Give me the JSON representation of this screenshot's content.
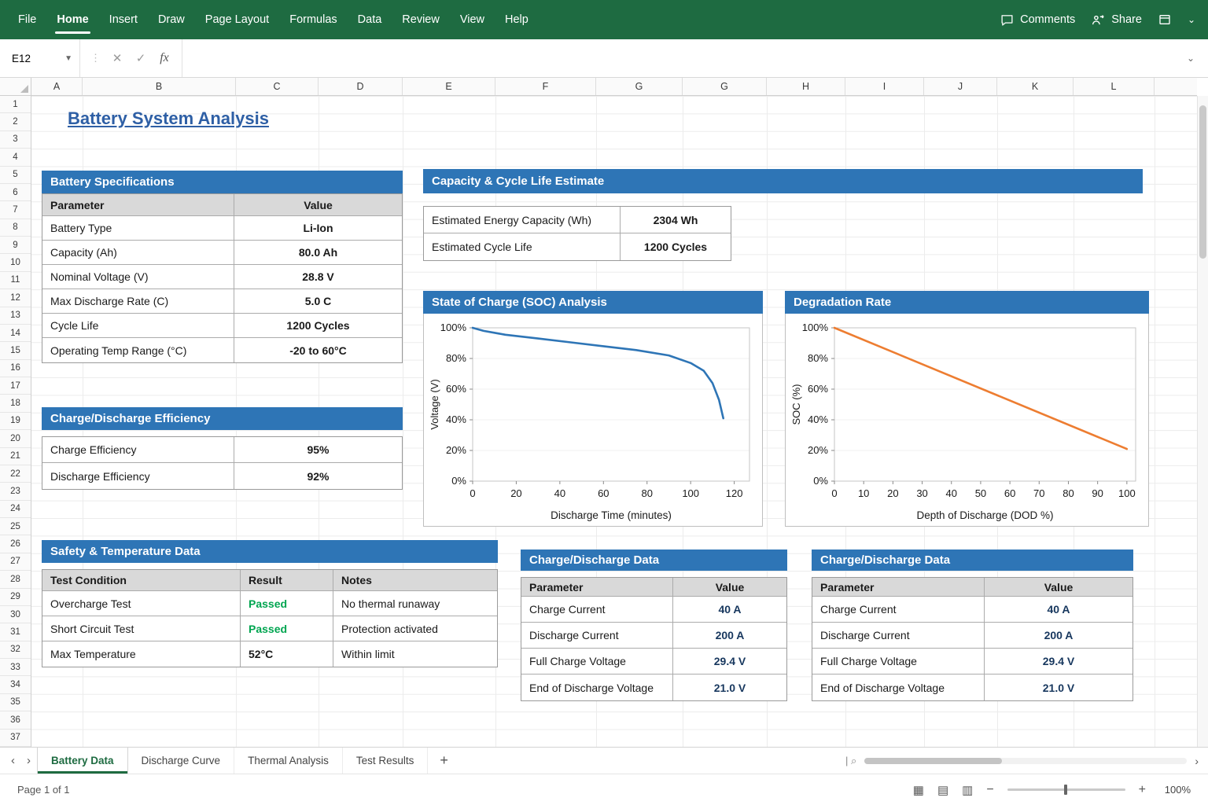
{
  "ribbon": {
    "menus": [
      "File",
      "Home",
      "Insert",
      "Draw",
      "Page Layout",
      "Formulas",
      "Data",
      "Review",
      "View",
      "Help"
    ],
    "active_menu": "Home",
    "comments_label": "Comments",
    "share_label": "Share"
  },
  "formula_bar": {
    "name_box": "E12",
    "fx_label": "fx",
    "formula_value": ""
  },
  "grid": {
    "columns": [
      "A",
      "B",
      "C",
      "D",
      "E",
      "F",
      "G",
      "G",
      "H",
      "I",
      "J",
      "K",
      "L"
    ],
    "row_count": 37
  },
  "page": {
    "title": "Battery System Analysis"
  },
  "colors": {
    "excel_green": "#1E6B41",
    "accent_blue": "#2E75B6",
    "passed_green": "#00A550",
    "soc_line_blue": "#2E75B6",
    "degradation_orange": "#ED7D31",
    "value_navy": "#17375E"
  },
  "tables": {
    "battery_specs": {
      "title": "Battery Specifications",
      "headers": [
        "Parameter",
        "Value"
      ],
      "rows": [
        [
          "Battery Type",
          "Li-Ion"
        ],
        [
          "Capacity (Ah)",
          "80.0 Ah"
        ],
        [
          "Nominal Voltage (V)",
          "28.8 V"
        ],
        [
          "Max Discharge Rate (C)",
          "5.0 C"
        ],
        [
          "Cycle Life",
          "1200 Cycles"
        ],
        [
          "Operating Temp Range (°C)",
          "-20 to 60°C"
        ]
      ]
    },
    "capacity": {
      "title": "Capacity & Cycle Life Estimate",
      "rows": [
        [
          "Estimated Energy Capacity (Wh)",
          "2304 Wh"
        ],
        [
          "Estimated Cycle Life",
          "1200 Cycles"
        ]
      ]
    },
    "efficiency": {
      "title": "Charge/Discharge Efficiency",
      "rows": [
        [
          "Charge Efficiency",
          "95%"
        ],
        [
          "Discharge Efficiency",
          "92%"
        ]
      ]
    },
    "safety": {
      "title": "Safety & Temperature Data",
      "headers": [
        "Test Condition",
        "Result",
        "Notes"
      ],
      "rows": [
        [
          "Overcharge Test",
          "Passed",
          "No thermal runaway"
        ],
        [
          "Short Circuit Test",
          "Passed",
          "Protection activated"
        ],
        [
          "Max Temperature",
          "52°C",
          "Within limit"
        ]
      ]
    },
    "charge_data_left": {
      "title": "Charge/Discharge Data",
      "headers": [
        "Parameter",
        "Value"
      ],
      "rows": [
        [
          "Charge Current",
          "40 A"
        ],
        [
          "Discharge Current",
          "200 A"
        ],
        [
          "Full Charge Voltage",
          "29.4 V"
        ],
        [
          "End of Discharge Voltage",
          "21.0 V"
        ]
      ]
    },
    "charge_data_right": {
      "title": "Charge/Discharge Data",
      "headers": [
        "Parameter",
        "Value"
      ],
      "rows": [
        [
          "Charge Current",
          "40 A"
        ],
        [
          "Discharge Current",
          "200 A"
        ],
        [
          "Full Charge Voltage",
          "29.4 V"
        ],
        [
          "End of Discharge Voltage",
          "21.0 V"
        ]
      ]
    }
  },
  "chart_data": [
    {
      "type": "line",
      "title": "State of Charge (SOC) Analysis",
      "xlabel": "Discharge Time (minutes)",
      "ylabel": "Voltage (V)",
      "x": [
        0,
        5,
        15,
        30,
        45,
        60,
        75,
        90,
        100,
        106,
        110,
        113,
        115
      ],
      "y": [
        100,
        98,
        95.5,
        93,
        90.5,
        88,
        85.5,
        82,
        77,
        72,
        64,
        53,
        41
      ],
      "xticks": [
        0,
        20,
        40,
        60,
        80,
        100,
        120
      ],
      "xlim": [
        0,
        127
      ],
      "ylim": [
        0,
        100
      ],
      "ytick_step": 20,
      "ytick_suffix": "%",
      "grid": "horizontal-faint",
      "legend": "none",
      "line_color": "#2E75B6"
    },
    {
      "type": "line",
      "title": "Degradation Rate",
      "xlabel": "Depth of Discharge (DOD %)",
      "ylabel": "SOC (%)",
      "x": [
        0,
        100
      ],
      "y": [
        100,
        21
      ],
      "xticks": [
        0,
        10,
        20,
        30,
        40,
        50,
        60,
        70,
        80,
        90,
        100
      ],
      "xlim": [
        0,
        103
      ],
      "ylim": [
        0,
        100
      ],
      "ytick_step": 20,
      "ytick_suffix": "%",
      "grid": "horizontal-faint",
      "legend": "none",
      "line_color": "#ED7D31"
    }
  ],
  "sheet_tabs": {
    "tabs": [
      {
        "label": "Battery Data",
        "active": true
      },
      {
        "label": "Discharge Curve",
        "active": false
      },
      {
        "label": "Thermal Analysis",
        "active": false
      },
      {
        "label": "Test Results",
        "active": false
      }
    ],
    "add_label": "+"
  },
  "status_bar": {
    "page_label": "Page 1 of 1",
    "zoom_level": "100%"
  }
}
